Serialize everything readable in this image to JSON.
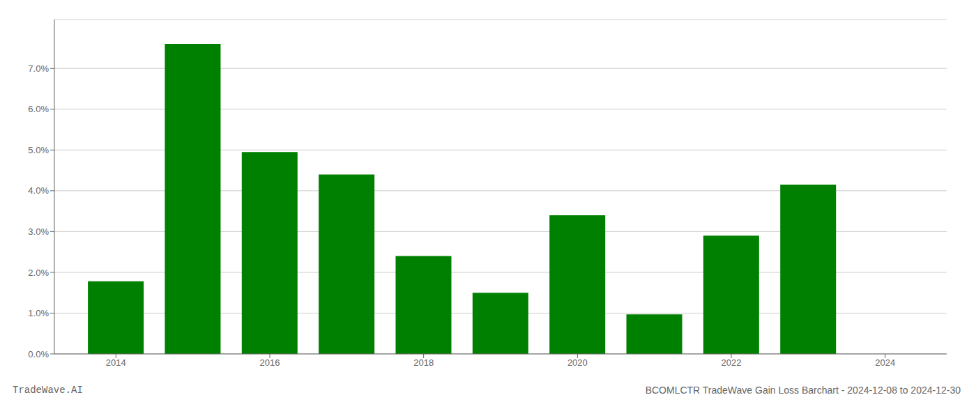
{
  "chart_data": {
    "type": "bar",
    "title": "BCOMLCTR TradeWave Gain Loss Barchart - 2024-12-08 to 2024-12-30",
    "annotations": [
      "TradeWave.AI"
    ],
    "x": [
      2014,
      2015,
      2016,
      2017,
      2018,
      2019,
      2020,
      2021,
      2022,
      2023
    ],
    "values": [
      0.0178,
      0.076,
      0.0495,
      0.044,
      0.024,
      0.015,
      0.034,
      0.0097,
      0.029,
      0.0415
    ],
    "color": "#008000",
    "xlim": [
      2013.2,
      2024.8
    ],
    "xticks": [
      2014,
      2016,
      2018,
      2020,
      2022,
      2024
    ],
    "ylim": [
      0,
      0.082
    ],
    "yticks": [
      {
        "value": 0.0,
        "label": "0.0%"
      },
      {
        "value": 0.01,
        "label": "1.0%"
      },
      {
        "value": 0.02,
        "label": "2.0%"
      },
      {
        "value": 0.03,
        "label": "3.0%"
      },
      {
        "value": 0.04,
        "label": "4.0%"
      },
      {
        "value": 0.05,
        "label": "5.0%"
      },
      {
        "value": 0.06,
        "label": "6.0%"
      },
      {
        "value": 0.07,
        "label": "7.0%"
      }
    ],
    "grid": true
  }
}
